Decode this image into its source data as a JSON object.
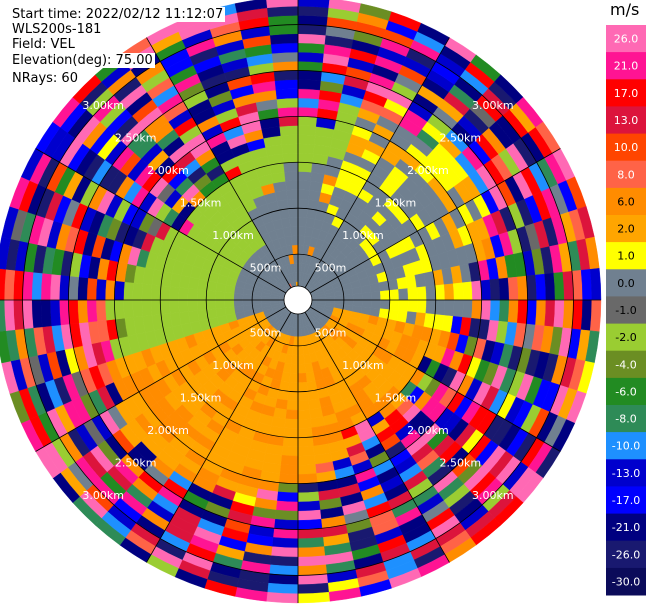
{
  "info": {
    "start_time": "Start time: 2022/02/12 11:12:07",
    "station": "WLS200s-181",
    "field": "Field: VEL",
    "elevation": "Elevation(deg): 75.00",
    "nrays": "NRays: 60"
  },
  "colorbar": {
    "unit": "m/s",
    "ticks": [
      "26.0",
      "21.0",
      "17.0",
      "13.0",
      "10.0",
      "8.0",
      "6.0",
      "2.0",
      "1.0",
      "0.0",
      "-1.0",
      "-2.0",
      "-4.0",
      "-6.0",
      "-8.0",
      "-10.0",
      "-13.0",
      "-17.0",
      "-21.0",
      "-26.0",
      "-30.0"
    ],
    "colors": [
      "#ff69b4",
      "#ff1493",
      "#ff0000",
      "#dc143c",
      "#ff4500",
      "#ff6347",
      "#ff8c00",
      "#ffa500",
      "#ffff00",
      "#708090",
      "#696969",
      "#9acd32",
      "#6b8e23",
      "#228b22",
      "#2e8b57",
      "#1e90ff",
      "#0000cd",
      "#0000ff",
      "#000080",
      "#191970",
      "#0b0b5a"
    ]
  },
  "chart_data": {
    "type": "heatmap",
    "projection": "polar PPI",
    "field": "VEL",
    "units": "m/s",
    "elevation_deg": 75.0,
    "n_rays": 60,
    "range_rings": [
      "500m",
      "1.00km",
      "1.50km",
      "2.00km",
      "2.50km",
      "3.00km"
    ],
    "range_ring_values_km": [
      0.5,
      1.0,
      1.5,
      2.0,
      2.5,
      3.0
    ],
    "max_range_km": 3.3,
    "gate_spacing_km": 0.1,
    "spoke_interval_deg": 30,
    "pattern": {
      "inner_north_half_velocity": -0.5,
      "inner_east_velocity": 0.2,
      "inner_south_velocity": 1.5,
      "inner_west_north_velocity": -2.5,
      "outer_ranges_velocity": "mixed noise (-30 to 26)"
    }
  }
}
